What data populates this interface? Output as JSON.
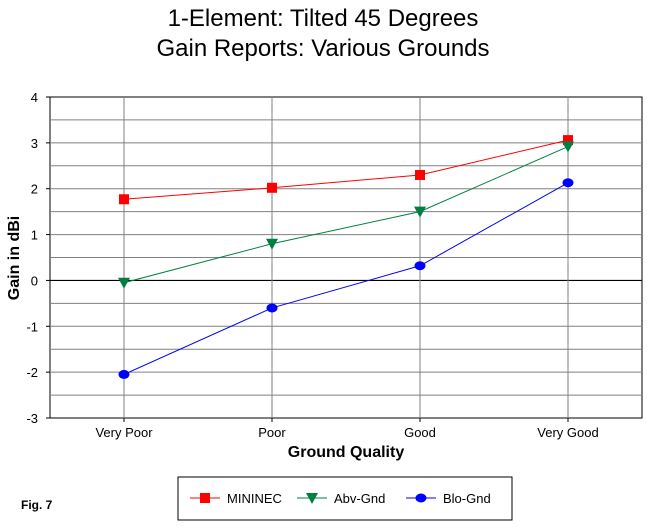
{
  "chart_data": {
    "type": "line",
    "title": [
      "1-Element:  Tilted 45 Degrees",
      "Gain Reports:  Various Grounds"
    ],
    "xlabel": "Ground Quality",
    "ylabel": "Gain in dBi",
    "categories": [
      "Very Poor",
      "Poor",
      "Good",
      "Very Good"
    ],
    "ylim": [
      -3,
      4
    ],
    "yticks": [
      "4",
      "3",
      "2",
      "1",
      "0",
      "-1",
      "-2",
      "-3"
    ],
    "grid": true,
    "legend_position": "bottom",
    "series": [
      {
        "name": "MININEC",
        "values": [
          1.77,
          2.02,
          2.3,
          3.06
        ],
        "color": "#ff0000",
        "marker": "square"
      },
      {
        "name": "Abv-Gnd",
        "values": [
          -0.05,
          0.8,
          1.5,
          2.92
        ],
        "color": "#008040",
        "marker": "triangle-down"
      },
      {
        "name": "Blo-Gnd",
        "values": [
          -2.05,
          -0.6,
          0.32,
          2.13
        ],
        "color": "#0000ff",
        "marker": "circle"
      }
    ]
  },
  "figure_label": "Fig. 7"
}
